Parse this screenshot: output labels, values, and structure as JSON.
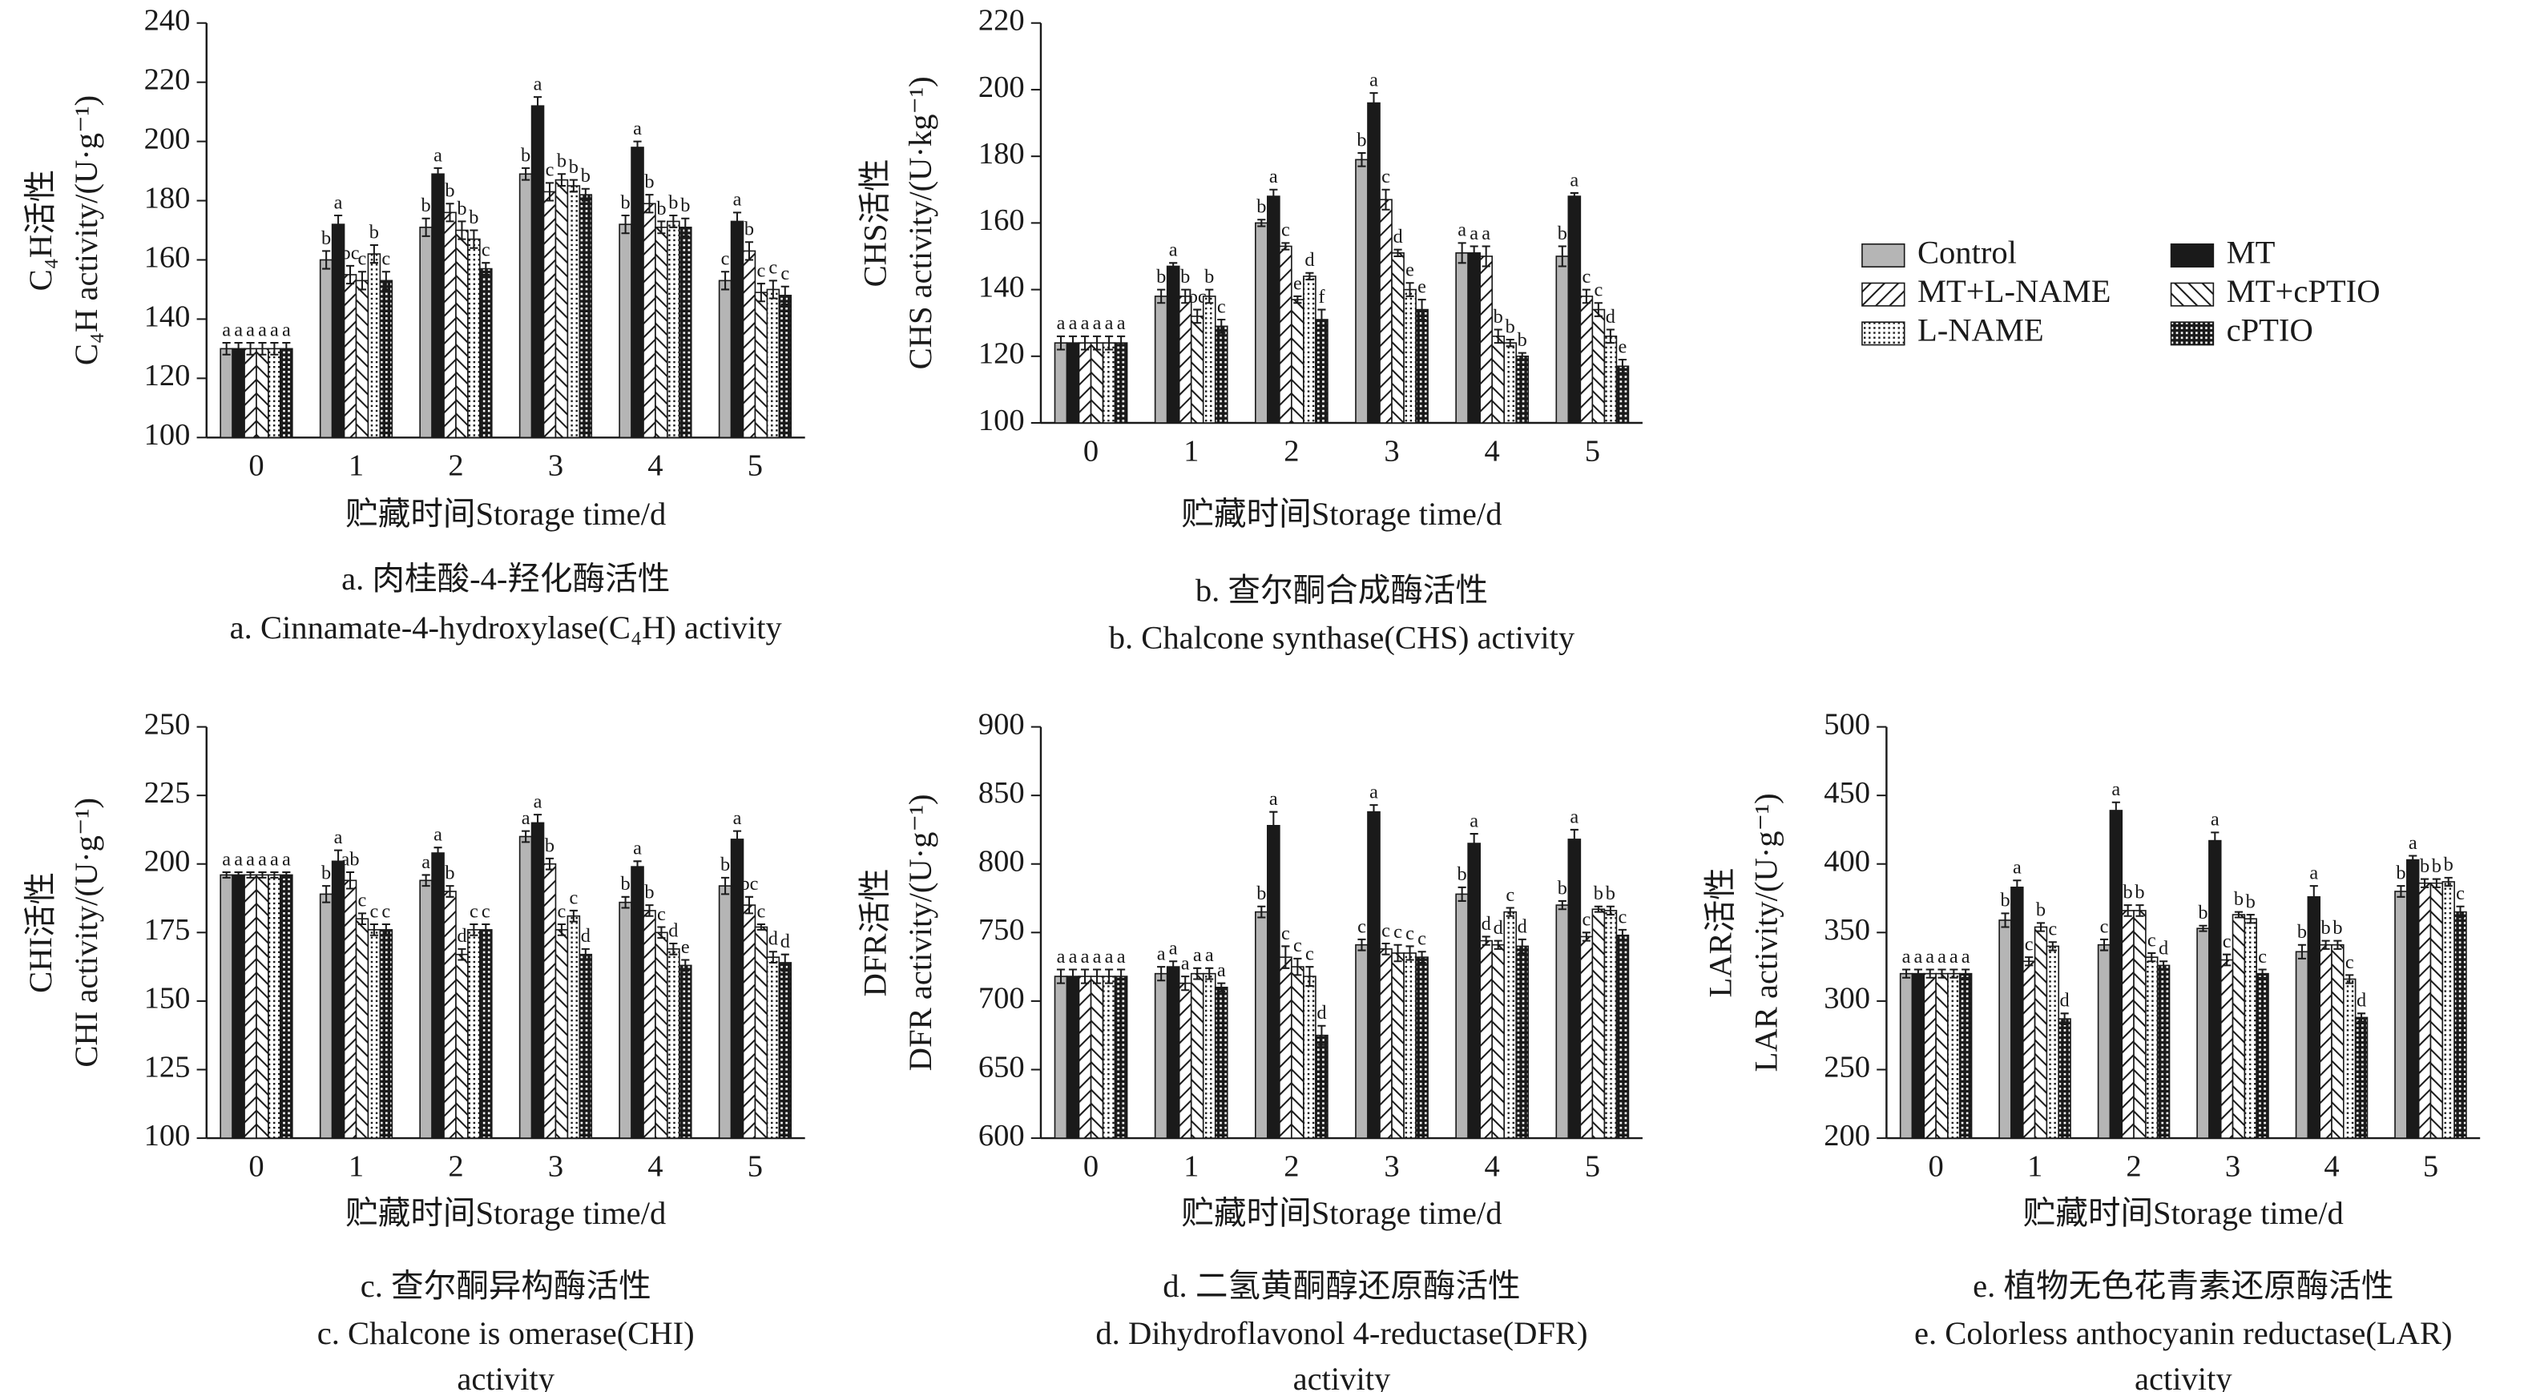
{
  "chart_data": [
    {
      "type": "bar",
      "title": [
        "a. 肉桂酸-4-羟化酶活性",
        "a. Cinnamate-4-hydroxylase(C₄H) activity"
      ],
      "ylabel": [
        "C₄H活性",
        "C₄H activity/(U·g⁻¹)"
      ],
      "xlabel": "贮藏时间Storage time/d",
      "categories": [
        "0",
        "1",
        "2",
        "3",
        "4",
        "5"
      ],
      "ylim": [
        100,
        240
      ],
      "yticks": [
        100,
        120,
        140,
        160,
        180,
        200,
        220,
        240
      ],
      "series": [
        {
          "name": "Control",
          "color": "#b5b5b5",
          "pattern": "solid",
          "values": [
            130,
            160,
            171,
            189,
            172,
            153
          ],
          "errors": [
            2,
            3,
            3,
            2,
            3,
            3
          ],
          "letters": [
            "a",
            "b",
            "b",
            "b",
            "b",
            "c"
          ]
        },
        {
          "name": "MT",
          "color": "#1a1a1a",
          "pattern": "solid",
          "values": [
            130,
            172,
            189,
            212,
            198,
            173
          ],
          "errors": [
            2,
            3,
            2,
            3,
            2,
            3
          ],
          "letters": [
            "a",
            "a",
            "a",
            "a",
            "a",
            "a"
          ]
        },
        {
          "name": "MT+L-NAME",
          "color": "#1a1a1a",
          "pattern": "hatch-right",
          "values": [
            130,
            155,
            176,
            183,
            179,
            163
          ],
          "errors": [
            2,
            3,
            3,
            3,
            3,
            3
          ],
          "letters": [
            "a",
            "bc",
            "b",
            "c",
            "b",
            "b"
          ]
        },
        {
          "name": "MT+cPTIO",
          "color": "#1a1a1a",
          "pattern": "hatch-left",
          "values": [
            130,
            153,
            170,
            187,
            171,
            149
          ],
          "errors": [
            2,
            3,
            3,
            2,
            2,
            3
          ],
          "letters": [
            "a",
            "c",
            "b",
            "b",
            "b",
            "c"
          ]
        },
        {
          "name": "L-NAME",
          "color": "#1a1a1a",
          "pattern": "dots",
          "values": [
            130,
            162,
            167,
            185,
            173,
            150
          ],
          "errors": [
            2,
            3,
            3,
            2,
            2,
            3
          ],
          "letters": [
            "a",
            "b",
            "b",
            "b",
            "b",
            "c"
          ]
        },
        {
          "name": "cPTIO",
          "color": "#1a1a1a",
          "pattern": "checker",
          "values": [
            130,
            153,
            157,
            182,
            171,
            148
          ],
          "errors": [
            2,
            3,
            2,
            2,
            3,
            3
          ],
          "letters": [
            "a",
            "c",
            "c",
            "b",
            "b",
            "c"
          ]
        }
      ]
    },
    {
      "type": "bar",
      "title": [
        "b. 查尔酮合成酶活性",
        "b. Chalcone synthase(CHS) activity"
      ],
      "ylabel": [
        "CHS活性",
        "CHS activity/(U·kg⁻¹)"
      ],
      "xlabel": "贮藏时间Storage time/d",
      "categories": [
        "0",
        "1",
        "2",
        "3",
        "4",
        "5"
      ],
      "ylim": [
        100,
        220
      ],
      "yticks": [
        100,
        120,
        140,
        160,
        180,
        200,
        220
      ],
      "series": [
        {
          "name": "Control",
          "color": "#b5b5b5",
          "pattern": "solid",
          "values": [
            124,
            138,
            160,
            179,
            151,
            150
          ],
          "errors": [
            2,
            2,
            1,
            2,
            3,
            3
          ],
          "letters": [
            "a",
            "b",
            "b",
            "b",
            "a",
            "b"
          ]
        },
        {
          "name": "MT",
          "color": "#1a1a1a",
          "pattern": "solid",
          "values": [
            124,
            147,
            168,
            196,
            151,
            168
          ],
          "errors": [
            2,
            1,
            2,
            3,
            2,
            1
          ],
          "letters": [
            "a",
            "a",
            "a",
            "a",
            "a",
            "a"
          ]
        },
        {
          "name": "MT+L-NAME",
          "color": "#1a1a1a",
          "pattern": "hatch-right",
          "values": [
            124,
            138,
            153,
            167,
            150,
            138
          ],
          "errors": [
            2,
            2,
            1,
            3,
            3,
            2
          ],
          "letters": [
            "a",
            "b",
            "c",
            "c",
            "a",
            "c"
          ]
        },
        {
          "name": "MT+cPTIO",
          "color": "#1a1a1a",
          "pattern": "hatch-left",
          "values": [
            124,
            132,
            137,
            151,
            126,
            134
          ],
          "errors": [
            2,
            2,
            1,
            1,
            2,
            2
          ],
          "letters": [
            "a",
            "bc",
            "e",
            "d",
            "b",
            "c"
          ]
        },
        {
          "name": "L-NAME",
          "color": "#1a1a1a",
          "pattern": "dots",
          "values": [
            124,
            138,
            144,
            140,
            124,
            126
          ],
          "errors": [
            2,
            2,
            1,
            2,
            1,
            2
          ],
          "letters": [
            "a",
            "b",
            "d",
            "e",
            "b",
            "d"
          ]
        },
        {
          "name": "cPTIO",
          "color": "#1a1a1a",
          "pattern": "checker",
          "values": [
            124,
            129,
            131,
            134,
            120,
            117
          ],
          "errors": [
            2,
            2,
            3,
            3,
            1,
            2
          ],
          "letters": [
            "a",
            "c",
            "f",
            "e",
            "b",
            "e"
          ]
        }
      ]
    },
    {
      "type": "bar",
      "title": [
        "c. 查尔酮异构酶活性",
        "c. Chalcone is omerase(CHI)",
        "activity"
      ],
      "ylabel": [
        "CHI活性",
        "CHI activity/(U·g⁻¹)"
      ],
      "xlabel": "贮藏时间Storage time/d",
      "categories": [
        "0",
        "1",
        "2",
        "3",
        "4",
        "5"
      ],
      "ylim": [
        100,
        250
      ],
      "yticks": [
        100,
        125,
        150,
        175,
        200,
        225,
        250
      ],
      "series": [
        {
          "name": "Control",
          "color": "#b5b5b5",
          "pattern": "solid",
          "values": [
            196,
            189,
            194,
            210,
            186,
            192
          ],
          "errors": [
            1,
            3,
            2,
            2,
            2,
            3
          ],
          "letters": [
            "a",
            "b",
            "a",
            "a",
            "b",
            "b"
          ]
        },
        {
          "name": "MT",
          "color": "#1a1a1a",
          "pattern": "solid",
          "values": [
            196,
            201,
            204,
            215,
            199,
            209
          ],
          "errors": [
            1,
            4,
            2,
            3,
            2,
            3
          ],
          "letters": [
            "a",
            "a",
            "a",
            "a",
            "a",
            "a"
          ]
        },
        {
          "name": "MT+L-NAME",
          "color": "#1a1a1a",
          "pattern": "hatch-right",
          "values": [
            196,
            194,
            190,
            200,
            183,
            185
          ],
          "errors": [
            1,
            3,
            2,
            2,
            2,
            3
          ],
          "letters": [
            "a",
            "ab",
            "b",
            "b",
            "b",
            "bc"
          ]
        },
        {
          "name": "MT+cPTIO",
          "color": "#1a1a1a",
          "pattern": "hatch-left",
          "values": [
            196,
            180,
            167,
            176,
            175,
            177
          ],
          "errors": [
            1,
            2,
            2,
            2,
            2,
            1
          ],
          "letters": [
            "a",
            "c",
            "d",
            "c",
            "c",
            "c"
          ]
        },
        {
          "name": "L-NAME",
          "color": "#1a1a1a",
          "pattern": "dots",
          "values": [
            196,
            176,
            176,
            181,
            169,
            166
          ],
          "errors": [
            1,
            2,
            2,
            2,
            2,
            2
          ],
          "letters": [
            "a",
            "c",
            "c",
            "c",
            "d",
            "d"
          ]
        },
        {
          "name": "cPTIO",
          "color": "#1a1a1a",
          "pattern": "checker",
          "values": [
            196,
            176,
            176,
            167,
            163,
            164
          ],
          "errors": [
            1,
            2,
            2,
            2,
            2,
            3
          ],
          "letters": [
            "a",
            "c",
            "c",
            "d",
            "e",
            "d"
          ]
        }
      ]
    },
    {
      "type": "bar",
      "title": [
        "d. 二氢黄酮醇还原酶活性",
        "d. Dihydroflavonol 4-reductase(DFR)",
        "activity"
      ],
      "ylabel": [
        "DFR活性",
        "DFR activity/(U·g⁻¹)"
      ],
      "xlabel": "贮藏时间Storage time/d",
      "categories": [
        "0",
        "1",
        "2",
        "3",
        "4",
        "5"
      ],
      "ylim": [
        600,
        900
      ],
      "yticks": [
        600,
        650,
        700,
        750,
        800,
        850,
        900
      ],
      "series": [
        {
          "name": "Control",
          "color": "#b5b5b5",
          "pattern": "solid",
          "values": [
            718,
            720,
            765,
            741,
            778,
            770
          ],
          "errors": [
            5,
            5,
            4,
            4,
            5,
            3
          ],
          "letters": [
            "a",
            "a",
            "b",
            "c",
            "b",
            "b"
          ]
        },
        {
          "name": "MT",
          "color": "#1a1a1a",
          "pattern": "solid",
          "values": [
            718,
            725,
            828,
            838,
            815,
            818
          ],
          "errors": [
            5,
            4,
            10,
            5,
            7,
            7
          ],
          "letters": [
            "a",
            "a",
            "a",
            "a",
            "a",
            "a"
          ]
        },
        {
          "name": "MT+L-NAME",
          "color": "#1a1a1a",
          "pattern": "hatch-right",
          "values": [
            718,
            713,
            732,
            738,
            744,
            747
          ],
          "errors": [
            5,
            5,
            8,
            4,
            3,
            3
          ],
          "letters": [
            "a",
            "a",
            "c",
            "c",
            "d",
            "c"
          ]
        },
        {
          "name": "MT+cPTIO",
          "color": "#1a1a1a",
          "pattern": "hatch-left",
          "values": [
            718,
            720,
            725,
            735,
            741,
            767
          ],
          "errors": [
            5,
            4,
            6,
            6,
            3,
            2
          ],
          "letters": [
            "a",
            "a",
            "c",
            "c",
            "d",
            "b"
          ]
        },
        {
          "name": "L-NAME",
          "color": "#1a1a1a",
          "pattern": "dots",
          "values": [
            718,
            720,
            718,
            735,
            765,
            766
          ],
          "errors": [
            5,
            4,
            7,
            5,
            3,
            3
          ],
          "letters": [
            "a",
            "a",
            "c",
            "c",
            "c",
            "b"
          ]
        },
        {
          "name": "cPTIO",
          "color": "#1a1a1a",
          "pattern": "checker",
          "values": [
            718,
            710,
            675,
            732,
            740,
            748
          ],
          "errors": [
            5,
            3,
            7,
            4,
            5,
            4
          ],
          "letters": [
            "a",
            "a",
            "d",
            "c",
            "d",
            "c"
          ]
        }
      ]
    },
    {
      "type": "bar",
      "title": [
        "e. 植物无色花青素还原酶活性",
        "e. Colorless anthocyanin reductase(LAR)",
        "activity"
      ],
      "ylabel": [
        "LAR活性",
        "LAR activity/(U·g⁻¹)"
      ],
      "xlabel": "贮藏时间Storage time/d",
      "categories": [
        "0",
        "1",
        "2",
        "3",
        "4",
        "5"
      ],
      "ylim": [
        200,
        500
      ],
      "yticks": [
        200,
        250,
        300,
        350,
        400,
        450,
        500
      ],
      "series": [
        {
          "name": "Control",
          "color": "#b5b5b5",
          "pattern": "solid",
          "values": [
            320,
            359,
            341,
            353,
            336,
            380
          ],
          "errors": [
            3,
            5,
            4,
            2,
            5,
            4
          ],
          "letters": [
            "a",
            "b",
            "c",
            "b",
            "b",
            "b"
          ]
        },
        {
          "name": "MT",
          "color": "#1a1a1a",
          "pattern": "solid",
          "values": [
            320,
            383,
            439,
            417,
            376,
            403
          ],
          "errors": [
            3,
            5,
            6,
            6,
            8,
            3
          ],
          "letters": [
            "a",
            "a",
            "a",
            "a",
            "a",
            "a"
          ]
        },
        {
          "name": "MT+L-NAME",
          "color": "#1a1a1a",
          "pattern": "hatch-right",
          "values": [
            320,
            329,
            366,
            330,
            341,
            386
          ],
          "errors": [
            3,
            3,
            4,
            4,
            3,
            3
          ],
          "letters": [
            "a",
            "c",
            "b",
            "c",
            "b",
            "b"
          ]
        },
        {
          "name": "MT+cPTIO",
          "color": "#1a1a1a",
          "pattern": "hatch-left",
          "values": [
            320,
            354,
            366,
            363,
            341,
            386
          ],
          "errors": [
            3,
            3,
            4,
            2,
            3,
            3
          ],
          "letters": [
            "a",
            "b",
            "b",
            "b",
            "b",
            "b"
          ]
        },
        {
          "name": "L-NAME",
          "color": "#1a1a1a",
          "pattern": "dots",
          "values": [
            320,
            340,
            332,
            360,
            316,
            387
          ],
          "errors": [
            3,
            3,
            3,
            3,
            3,
            3
          ],
          "letters": [
            "a",
            "c",
            "c",
            "b",
            "c",
            "b"
          ]
        },
        {
          "name": "cPTIO",
          "color": "#1a1a1a",
          "pattern": "checker",
          "values": [
            320,
            287,
            326,
            320,
            288,
            365
          ],
          "errors": [
            3,
            4,
            3,
            3,
            3,
            4
          ],
          "letters": [
            "a",
            "d",
            "d",
            "c",
            "d",
            "c"
          ]
        }
      ]
    }
  ]
}
